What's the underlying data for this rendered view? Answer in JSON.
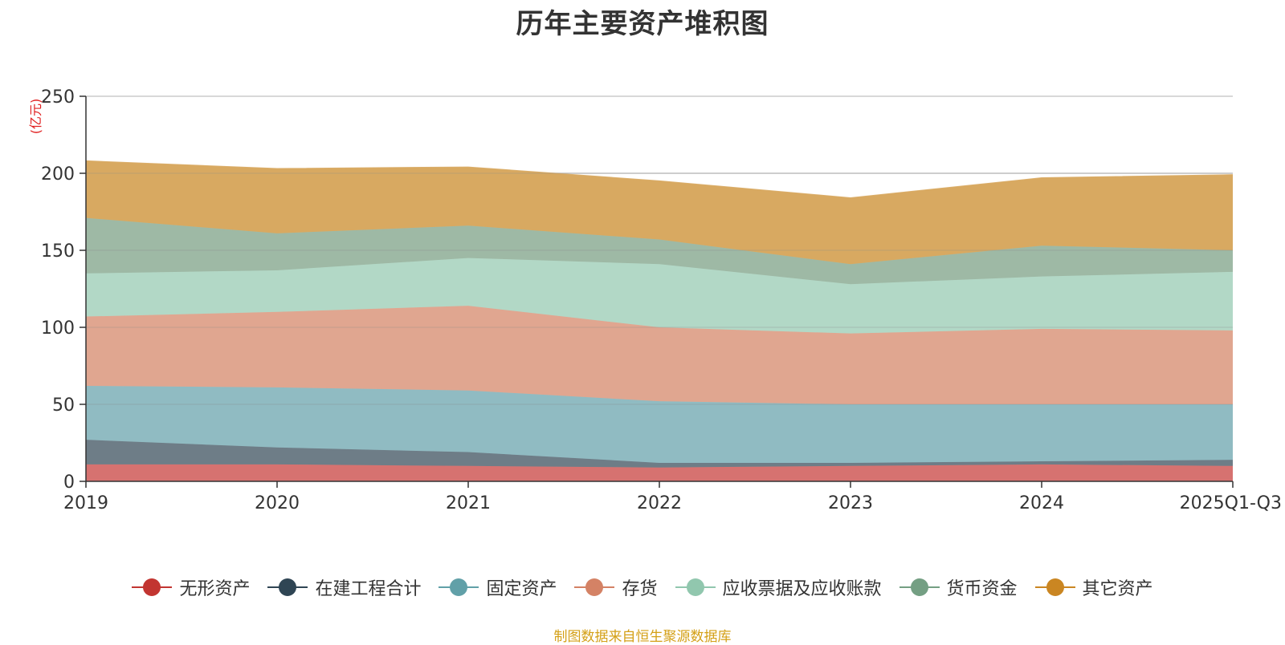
{
  "chart_data": {
    "type": "area",
    "stacked": true,
    "title": "历年主要资产堆积图",
    "unit_label": "(亿元)",
    "categories": [
      "2019",
      "2020",
      "2021",
      "2022",
      "2023",
      "2024",
      "2025Q1-Q3"
    ],
    "ylim": [
      0,
      250
    ],
    "yticks": [
      0,
      50,
      100,
      150,
      200,
      250
    ],
    "grid": true,
    "legend_position": "bottom",
    "series": [
      {
        "name": "无形资产",
        "color": "#c23531",
        "fill": "#d67270",
        "values": [
          11,
          11,
          10,
          9,
          10,
          11,
          10
        ]
      },
      {
        "name": "在建工程合计",
        "color": "#2f4554",
        "fill": "#6e7d87",
        "values": [
          16,
          11,
          9,
          3,
          2,
          2,
          4
        ]
      },
      {
        "name": "固定资产",
        "color": "#61a0a8",
        "fill": "#90bbc2",
        "values": [
          35,
          39,
          40,
          40,
          38,
          37,
          36
        ]
      },
      {
        "name": "存货",
        "color": "#d48265",
        "fill": "#e0a690",
        "values": [
          45,
          49,
          55,
          48,
          46,
          49,
          48
        ]
      },
      {
        "name": "应收票据及应收账款",
        "color": "#91c7ae",
        "fill": "#b2d8c6",
        "values": [
          28,
          27,
          31,
          41,
          32,
          34,
          38
        ]
      },
      {
        "name": "货币资金",
        "color": "#749f83",
        "fill": "#9eb9a5",
        "values": [
          36,
          24,
          21,
          16,
          13,
          20,
          14
        ]
      },
      {
        "name": "其它资产",
        "color": "#ca8622",
        "fill": "#d8a961",
        "values": [
          37,
          42,
          38,
          38,
          43,
          44,
          49
        ]
      }
    ]
  },
  "source_note": "制图数据来自恒生聚源数据库"
}
